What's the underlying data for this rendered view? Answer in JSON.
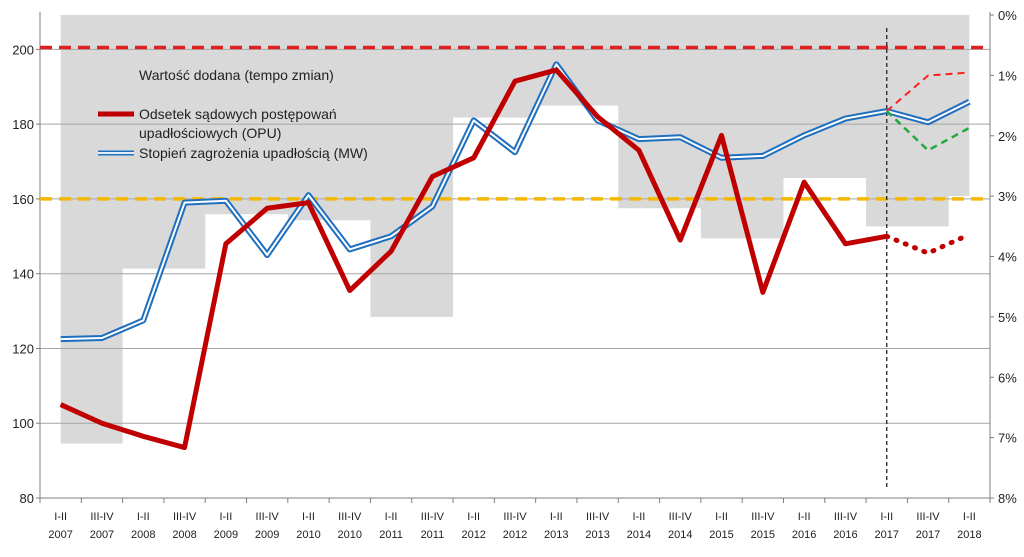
{
  "chart_data": {
    "type": "line",
    "categories": [
      [
        "I-II",
        "2007"
      ],
      [
        "III-IV",
        "2007"
      ],
      [
        "I-II",
        "2008"
      ],
      [
        "III-IV",
        "2008"
      ],
      [
        "I-II",
        "2009"
      ],
      [
        "III-IV",
        "2009"
      ],
      [
        "I-II",
        "2010"
      ],
      [
        "III-IV",
        "2010"
      ],
      [
        "I-II",
        "2011"
      ],
      [
        "III-IV",
        "2011"
      ],
      [
        "I-II",
        "2012"
      ],
      [
        "III-IV",
        "2012"
      ],
      [
        "I-II",
        "2013"
      ],
      [
        "III-IV",
        "2013"
      ],
      [
        "I-II",
        "2014"
      ],
      [
        "III-IV",
        "2014"
      ],
      [
        "I-II",
        "2015"
      ],
      [
        "III-IV",
        "2015"
      ],
      [
        "I-II",
        "2016"
      ],
      [
        "III-IV",
        "2016"
      ],
      [
        "I-II",
        "2017"
      ],
      [
        "III-IV",
        "2017"
      ],
      [
        "I-II",
        "2018"
      ]
    ],
    "ylim_left": [
      80,
      210
    ],
    "yticks_left": [
      80,
      100,
      120,
      140,
      160,
      180,
      200
    ],
    "ylim_right": [
      8,
      -0.1
    ],
    "yticks_right": [
      "0%",
      "1%",
      "2%",
      "3%",
      "4%",
      "5%",
      "6%",
      "7%",
      "8%"
    ],
    "yticks_right_values": [
      0,
      1,
      2,
      3,
      4,
      5,
      6,
      7,
      8
    ],
    "grid": true,
    "legend_position": "top-left",
    "series": [
      {
        "name": "Wartość dodana (tempo zmian)",
        "kind": "area",
        "axis": "right",
        "color": "#d9d9d9",
        "values": [
          7.1,
          7.1,
          4.2,
          4.2,
          3.3,
          3.3,
          3.4,
          3.4,
          5.0,
          5.0,
          1.7,
          1.7,
          1.5,
          1.5,
          3.2,
          3.2,
          3.7,
          3.7,
          2.7,
          2.7,
          3.5,
          3.5,
          3.0
        ]
      },
      {
        "name": "Odsetek sądowych postępowań upadłościowych (OPU)",
        "kind": "line",
        "axis": "left",
        "color": "#c00000",
        "values": [
          105,
          100,
          96.5,
          93.5,
          148,
          157.5,
          159,
          135.5,
          146,
          166,
          171,
          191.5,
          194.5,
          182,
          173,
          149,
          177,
          135,
          164.5,
          148,
          150,
          null,
          null
        ],
        "forecast": [
          [
            20,
            150
          ],
          [
            21,
            145.5
          ],
          [
            22,
            150.5
          ]
        ]
      },
      {
        "name": "Stopień zagrożenia upadłością (MW)",
        "kind": "line",
        "axis": "left",
        "color": "#1f6fbf",
        "values": [
          122.5,
          122.8,
          127.5,
          159,
          159.5,
          145,
          161,
          146.5,
          150,
          158,
          181,
          172.5,
          196,
          181,
          176,
          176.5,
          171,
          171.5,
          177,
          181.5,
          183.5,
          180.5,
          186
        ],
        "forecast_up": [
          [
            20,
            183.5
          ],
          [
            21,
            193
          ],
          [
            22,
            193.8
          ]
        ],
        "forecast_down": [
          [
            20,
            183.5
          ],
          [
            21,
            173
          ],
          [
            22,
            179
          ]
        ]
      }
    ],
    "reference_lines": [
      {
        "value": 200.5,
        "color": "#e02020"
      },
      {
        "value": 160,
        "color": "#f5b800"
      }
    ],
    "forecast_divider_index": 20
  },
  "legend": {
    "area_label": "Wartość dodana (tempo zmian)",
    "opu_label_line1": "Odsetek sądowych postępowań",
    "opu_label_line2": "upadłościowych (OPU)",
    "mw_label": "Stopień zagrożenia upadłością (MW)"
  }
}
